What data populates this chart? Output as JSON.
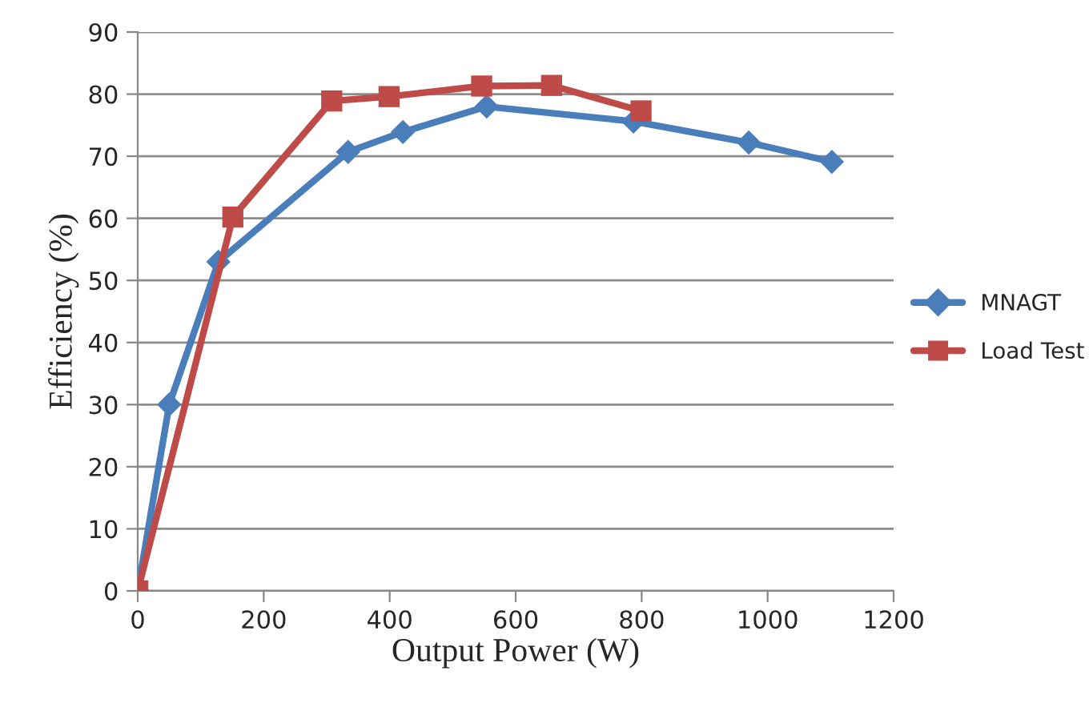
{
  "chart_data": {
    "type": "line",
    "xlabel": "Output Power (W)",
    "ylabel": "Efficiency (%)",
    "xlim": [
      0,
      1200
    ],
    "xticks": [
      0,
      200,
      400,
      600,
      800,
      1000,
      1200
    ],
    "ylim": [
      0,
      90
    ],
    "yticks": [
      0,
      10,
      20,
      30,
      40,
      50,
      60,
      70,
      80,
      90
    ],
    "grid": "y",
    "legend": "right",
    "series": [
      {
        "name": "MNAGT",
        "color": "#4a7ebb",
        "marker": "diamond",
        "x": [
          0,
          50,
          128,
          334,
          421,
          554,
          787,
          970,
          1102
        ],
        "values": [
          0,
          30,
          53,
          70.7,
          73.9,
          78,
          75.6,
          72.2,
          69.1
        ]
      },
      {
        "name": "Load Test",
        "color": "#be4b48",
        "marker": "square",
        "x": [
          0,
          151,
          308,
          399,
          546,
          657,
          799
        ],
        "values": [
          0,
          60.2,
          78.9,
          79.6,
          81.3,
          81.4,
          77.3
        ]
      }
    ]
  }
}
